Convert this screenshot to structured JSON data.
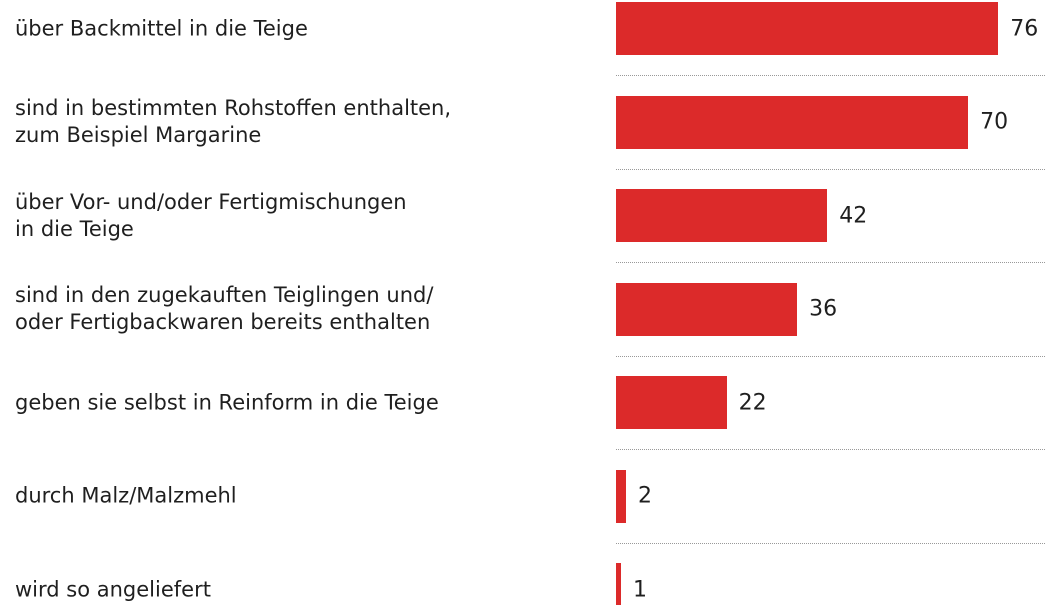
{
  "chart_data": {
    "type": "bar",
    "orientation": "horizontal",
    "categories": [
      "über Backmittel in die Teige",
      "sind in bestimmten Rohstoffen enthalten,\nzum Beispiel Margarine",
      "über Vor- und/oder Fertigmischungen\nin die Teige",
      "sind in den zugekauften Teiglingen und/\noder Fertigbackwaren bereits enthalten",
      "geben sie selbst in Reinform in die Teige",
      "durch Malz/Malzmehl",
      "wird so angeliefert"
    ],
    "values": [
      76,
      70,
      42,
      36,
      22,
      2,
      1
    ],
    "color": "#dc2a2a"
  }
}
